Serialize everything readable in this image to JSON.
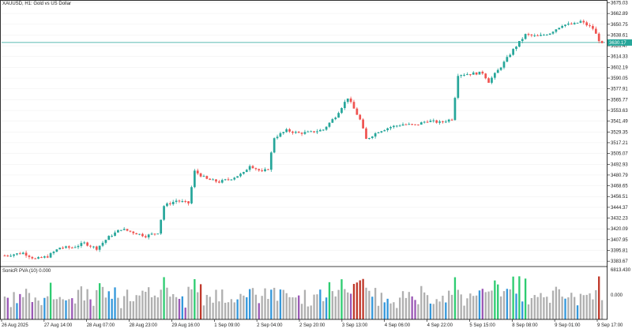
{
  "window": {
    "symbol_title": "XAUUSD, H1:  Gold vs US Dollar",
    "volume_indicator_title": "SonicR PVA (10) 0.000"
  },
  "colors": {
    "bull": "#26a69a",
    "bear": "#ef5350",
    "background": "#ffffff",
    "grid": "#eeeeee",
    "current_price_line": "#26a69a",
    "vol_normal": "#b0b0b0",
    "vol_climax_bull": "#2ecc71",
    "vol_climax_bear": "#c0392b",
    "vol_rising_bull": "#3498db",
    "vol_rising_bear": "#9b59b6"
  },
  "price_axis": {
    "ticks": [
      "3675.03",
      "3662.89",
      "3650.75",
      "3638.61",
      "3626.47",
      "3614.33",
      "3602.19",
      "3590.05",
      "3577.91",
      "3565.77",
      "3553.63",
      "3541.49",
      "3529.35",
      "3517.21",
      "3505.07",
      "3492.93",
      "3480.79",
      "3468.65",
      "3456.51",
      "3444.37",
      "3432.23",
      "3420.09",
      "3407.95",
      "3395.81",
      "3383.67"
    ],
    "current_price": "3630.17"
  },
  "volume_axis": {
    "top_label": "6813.430",
    "bottom_label": "0.000"
  },
  "time_axis": {
    "labels": [
      "26 Aug 2025",
      "27 Aug 14:00",
      "28 Aug 07:00",
      "28 Aug 23:00",
      "29 Aug 16:00",
      "1 Sep 09:00",
      "2 Sep 04:00",
      "2 Sep 20:00",
      "3 Sep 13:00",
      "4 Sep 06:00",
      "4 Sep 22:00",
      "5 Sep 15:00",
      "8 Sep 08:00",
      "9 Sep 01:00",
      "9 Sep 17:00"
    ]
  },
  "chart_data": {
    "type": "candlestick",
    "title": "XAUUSD, H1:  Gold vs US Dollar",
    "ylim": [
      3377.6,
      3678.1
    ],
    "anchors": [
      [
        0,
        3390
      ],
      [
        6,
        3393
      ],
      [
        10,
        3386
      ],
      [
        14,
        3389
      ],
      [
        18,
        3399
      ],
      [
        22,
        3399
      ],
      [
        26,
        3404
      ],
      [
        30,
        3398
      ],
      [
        34,
        3411
      ],
      [
        38,
        3420
      ],
      [
        42,
        3416
      ],
      [
        46,
        3412
      ],
      [
        50,
        3416
      ],
      [
        52,
        3446
      ],
      [
        56,
        3452
      ],
      [
        60,
        3449
      ],
      [
        62,
        3485
      ],
      [
        66,
        3476
      ],
      [
        70,
        3473
      ],
      [
        74,
        3477
      ],
      [
        78,
        3483
      ],
      [
        80,
        3492
      ],
      [
        84,
        3484
      ],
      [
        86,
        3488
      ],
      [
        88,
        3523
      ],
      [
        92,
        3531
      ],
      [
        96,
        3528
      ],
      [
        100,
        3529
      ],
      [
        104,
        3532
      ],
      [
        108,
        3547
      ],
      [
        112,
        3568
      ],
      [
        116,
        3543
      ],
      [
        118,
        3521
      ],
      [
        122,
        3530
      ],
      [
        126,
        3535
      ],
      [
        130,
        3538
      ],
      [
        134,
        3537
      ],
      [
        138,
        3542
      ],
      [
        142,
        3540
      ],
      [
        146,
        3544
      ],
      [
        148,
        3594
      ],
      [
        152,
        3595
      ],
      [
        156,
        3596
      ],
      [
        158,
        3586
      ],
      [
        162,
        3603
      ],
      [
        166,
        3622
      ],
      [
        170,
        3639
      ],
      [
        174,
        3637
      ],
      [
        178,
        3641
      ],
      [
        182,
        3650
      ],
      [
        186,
        3651
      ],
      [
        188,
        3654
      ],
      [
        190,
        3650
      ],
      [
        192,
        3646
      ],
      [
        194,
        3633
      ],
      [
        195,
        3628
      ]
    ],
    "count": 196
  }
}
